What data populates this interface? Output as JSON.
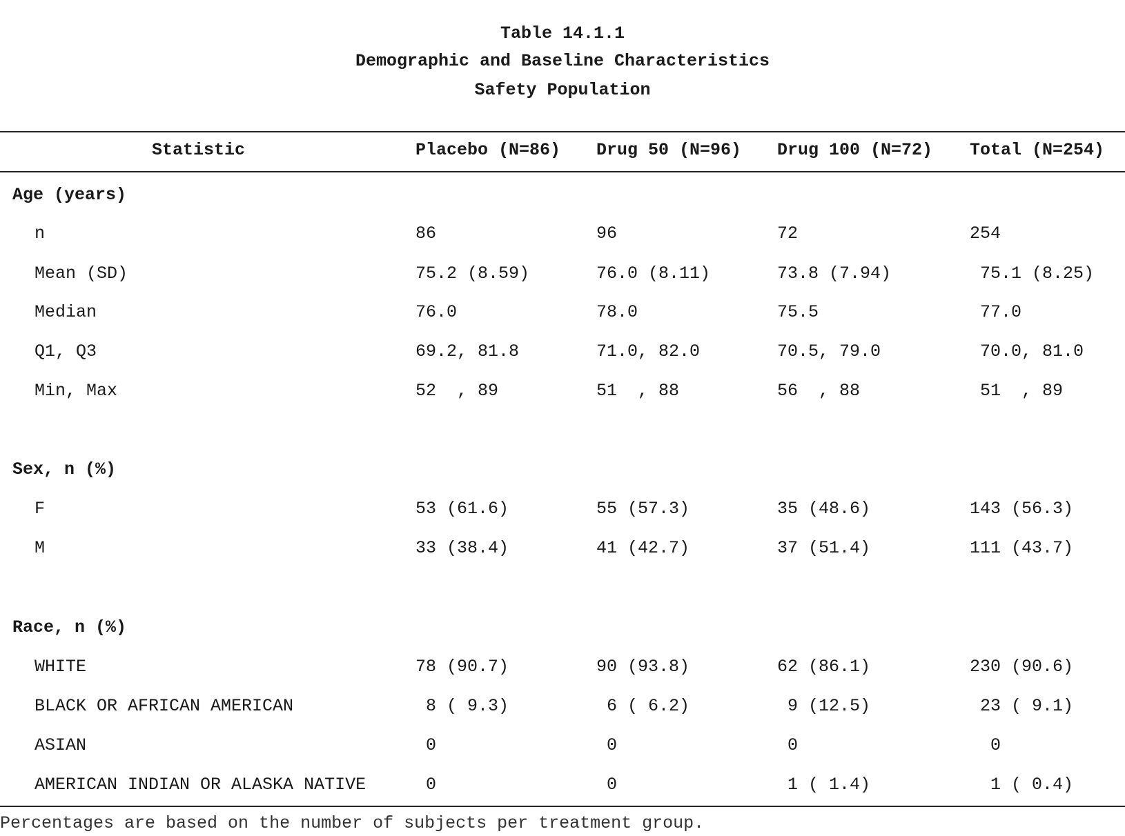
{
  "titles": {
    "line1": "Table 14.1.1",
    "line2": "Demographic and Baseline Characteristics",
    "line3": "Safety Population"
  },
  "columns": {
    "statistic": "Statistic",
    "placebo": "Placebo (N=86)",
    "drug50": "Drug 50 (N=96)",
    "drug100": "Drug 100 (N=72)",
    "total": "Total (N=254)"
  },
  "sections": {
    "age": {
      "label": "Age (years)",
      "rows": [
        {
          "label": "n",
          "placebo": "86",
          "drug50": "96",
          "drug100": "72",
          "total": "254"
        },
        {
          "label": "Mean (SD)",
          "placebo": "75.2 (8.59)",
          "drug50": "76.0 (8.11)",
          "drug100": "73.8 (7.94)",
          "total": " 75.1 (8.25)"
        },
        {
          "label": "Median",
          "placebo": "76.0",
          "drug50": "78.0",
          "drug100": "75.5",
          "total": " 77.0"
        },
        {
          "label": "Q1, Q3",
          "placebo": "69.2, 81.8",
          "drug50": "71.0, 82.0",
          "drug100": "70.5, 79.0",
          "total": " 70.0, 81.0"
        },
        {
          "label": "Min, Max",
          "placebo": "52  , 89",
          "drug50": "51  , 88",
          "drug100": "56  , 88",
          "total": " 51  , 89"
        }
      ]
    },
    "sex": {
      "label": "Sex, n (%)",
      "rows": [
        {
          "label": "F",
          "placebo": "53 (61.6)",
          "drug50": "55 (57.3)",
          "drug100": "35 (48.6)",
          "total": "143 (56.3)"
        },
        {
          "label": "M",
          "placebo": "33 (38.4)",
          "drug50": "41 (42.7)",
          "drug100": "37 (51.4)",
          "total": "111 (43.7)"
        }
      ]
    },
    "race": {
      "label": "Race, n (%)",
      "rows": [
        {
          "label": "WHITE",
          "placebo": "78 (90.7)",
          "drug50": "90 (93.8)",
          "drug100": "62 (86.1)",
          "total": "230 (90.6)"
        },
        {
          "label": "BLACK OR AFRICAN AMERICAN",
          "placebo": " 8 ( 9.3)",
          "drug50": " 6 ( 6.2)",
          "drug100": " 9 (12.5)",
          "total": " 23 ( 9.1)"
        },
        {
          "label": "ASIAN",
          "placebo": " 0",
          "drug50": " 0",
          "drug100": " 0",
          "total": "  0"
        },
        {
          "label": "AMERICAN INDIAN OR ALASKA NATIVE",
          "placebo": " 0",
          "drug50": " 0",
          "drug100": " 1 ( 1.4)",
          "total": "  1 ( 0.4)"
        }
      ]
    }
  },
  "footnote": "Percentages are based on the number of subjects per treatment group."
}
